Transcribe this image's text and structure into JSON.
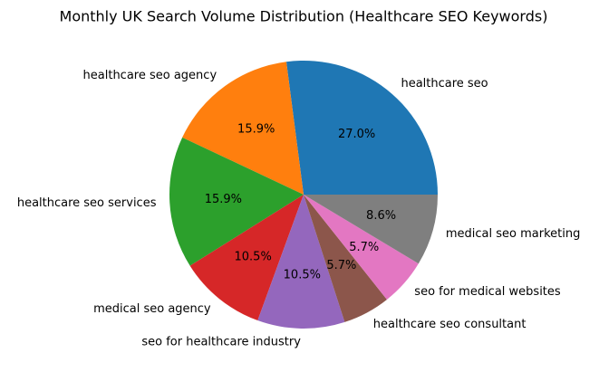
{
  "chart_data": {
    "type": "pie",
    "title": "Monthly UK Search Volume Distribution (Healthcare SEO Keywords)",
    "categories": [
      "healthcare seo",
      "healthcare seo agency",
      "healthcare seo services",
      "medical seo agency",
      "seo for healthcare industry",
      "healthcare seo consultant",
      "seo for medical websites",
      "medical seo marketing"
    ],
    "values": [
      27.0,
      15.9,
      15.9,
      10.5,
      10.5,
      5.7,
      5.7,
      8.6
    ],
    "value_labels": [
      "27.0%",
      "15.9%",
      "15.9%",
      "10.5%",
      "10.5%",
      "5.7%",
      "5.7%",
      "8.6%"
    ],
    "colors": [
      "#1f77b4",
      "#ff7f0e",
      "#2ca02c",
      "#d62728",
      "#9467bd",
      "#8c564b",
      "#e377c2",
      "#7f7f7f"
    ],
    "start_angle": 0,
    "direction": "counterclockwise"
  }
}
